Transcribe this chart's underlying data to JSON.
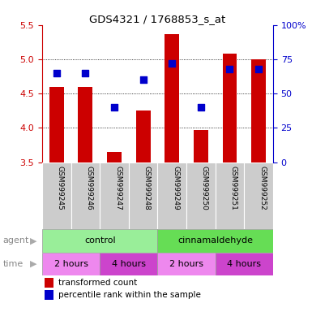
{
  "title": "GDS4321 / 1768853_s_at",
  "samples": [
    "GSM999245",
    "GSM999246",
    "GSM999247",
    "GSM999248",
    "GSM999249",
    "GSM999250",
    "GSM999251",
    "GSM999252"
  ],
  "transformed_count": [
    4.6,
    4.6,
    3.65,
    4.25,
    5.37,
    3.97,
    5.08,
    5.0
  ],
  "percentile_rank": [
    65,
    65,
    40,
    60,
    72,
    40,
    68,
    68
  ],
  "ylim_left": [
    3.5,
    5.5
  ],
  "ylim_right": [
    0,
    100
  ],
  "yticks_left": [
    3.5,
    4.0,
    4.5,
    5.0,
    5.5
  ],
  "yticks_right": [
    0,
    25,
    50,
    75,
    100
  ],
  "ytick_right_labels": [
    "0",
    "25",
    "50",
    "75",
    "100%"
  ],
  "bar_color": "#cc0000",
  "dot_color": "#0000cc",
  "bar_width": 0.5,
  "agent_control_color": "#99ee99",
  "agent_cinnam_color": "#66dd55",
  "time_2h_color": "#ee88ee",
  "time_4h_color": "#cc44cc",
  "sample_bg_color": "#cccccc",
  "left_tick_color": "#cc0000",
  "right_tick_color": "#0000cc",
  "legend_red_label": "transformed count",
  "legend_blue_label": "percentile rank within the sample"
}
